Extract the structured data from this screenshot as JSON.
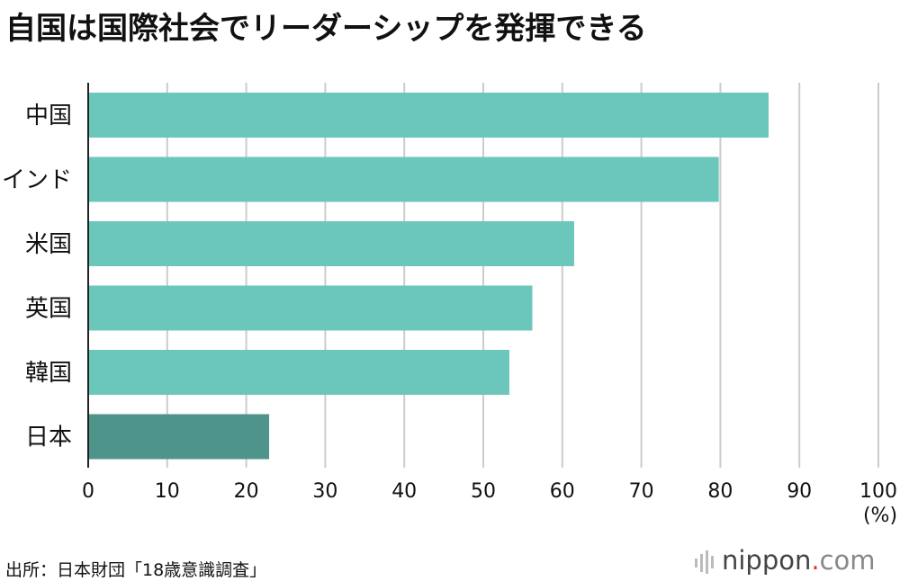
{
  "chart_data": {
    "type": "bar",
    "orientation": "horizontal",
    "title": "自国は国際社会でリーダーシップを発揮できる",
    "categories": [
      "中国",
      "インド",
      "米国",
      "英国",
      "韓国",
      "日本"
    ],
    "values": [
      86.1,
      79.8,
      61.5,
      56.2,
      53.3,
      22.9
    ],
    "highlight_category": "日本",
    "xlim": [
      0,
      100
    ],
    "xticks": [
      0,
      10,
      20,
      30,
      40,
      50,
      60,
      70,
      80,
      90,
      100
    ],
    "xlabel": "",
    "unit_label": "(%)",
    "grid": true,
    "colors": {
      "bar": "#6bc7bb",
      "highlight": "#4f948a",
      "grid": "#cccccc",
      "axis": "#222222"
    }
  },
  "source": "出所：日本財団「18歳意識調査」",
  "brand": {
    "name": "nippon",
    "dot": ".",
    "domain": "com"
  }
}
